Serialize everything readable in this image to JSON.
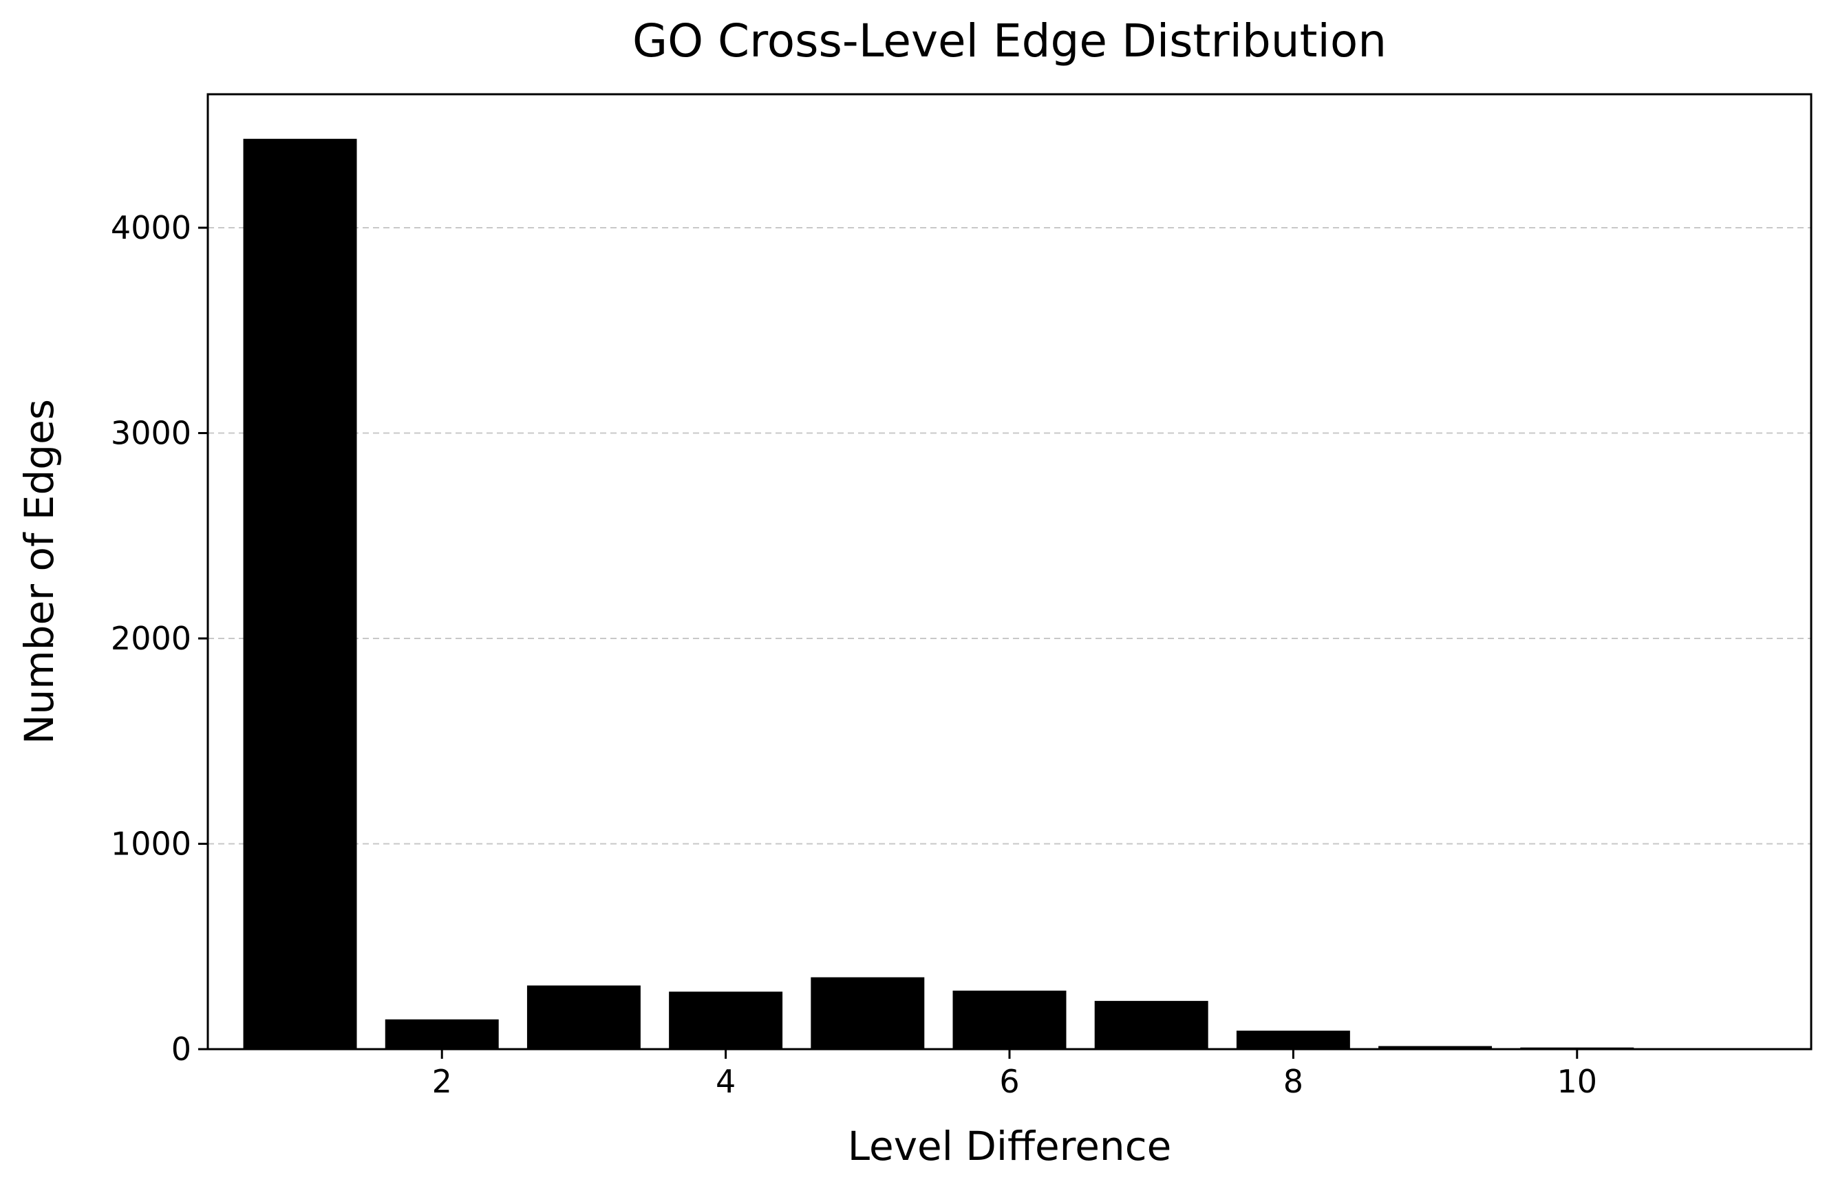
{
  "chart_data": {
    "type": "bar",
    "title": "GO Cross-Level Edge Distribution",
    "xlabel": "Level Difference",
    "ylabel": "Number of Edges",
    "x": [
      1,
      2,
      3,
      4,
      5,
      6,
      7,
      8,
      9,
      10,
      11
    ],
    "values": [
      4433,
      145,
      310,
      280,
      350,
      285,
      235,
      90,
      15,
      8,
      4
    ],
    "xlim": [
      0.35,
      11.65
    ],
    "ylim": [
      0,
      4650
    ],
    "xticks": [
      2,
      4,
      6,
      8,
      10
    ],
    "yticks": [
      0,
      1000,
      2000,
      3000,
      4000
    ],
    "bar_color": "#000000",
    "grid": {
      "axis": "y",
      "style": "dashed",
      "color": "#c8c8c8"
    }
  }
}
